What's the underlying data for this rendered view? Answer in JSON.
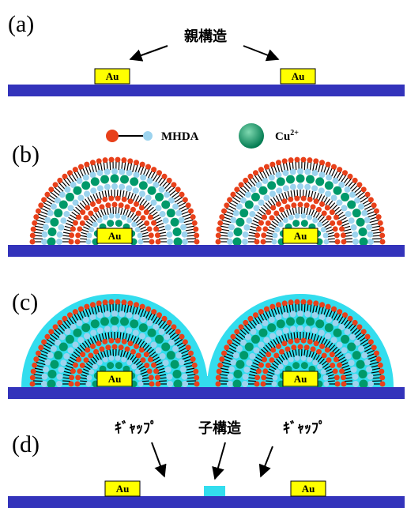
{
  "panels": [
    {
      "label": "(a)",
      "annotation": "親構造",
      "electrodes": [
        "Au",
        "Au"
      ]
    },
    {
      "label": "(b)",
      "electrodes": [
        "Au",
        "Au"
      ]
    },
    {
      "label": "(c)",
      "electrodes": [
        "Au",
        "Au"
      ]
    },
    {
      "label": "(d)",
      "annotations": [
        "ｷﾞｬｯﾌﾟ",
        "子構造",
        "ｷﾞｬｯﾌﾟ"
      ],
      "electrodes": [
        "Au",
        "Au"
      ]
    }
  ],
  "legend": {
    "molecule": "MHDA",
    "ion": "Cu",
    "ion_charge": "2+"
  }
}
